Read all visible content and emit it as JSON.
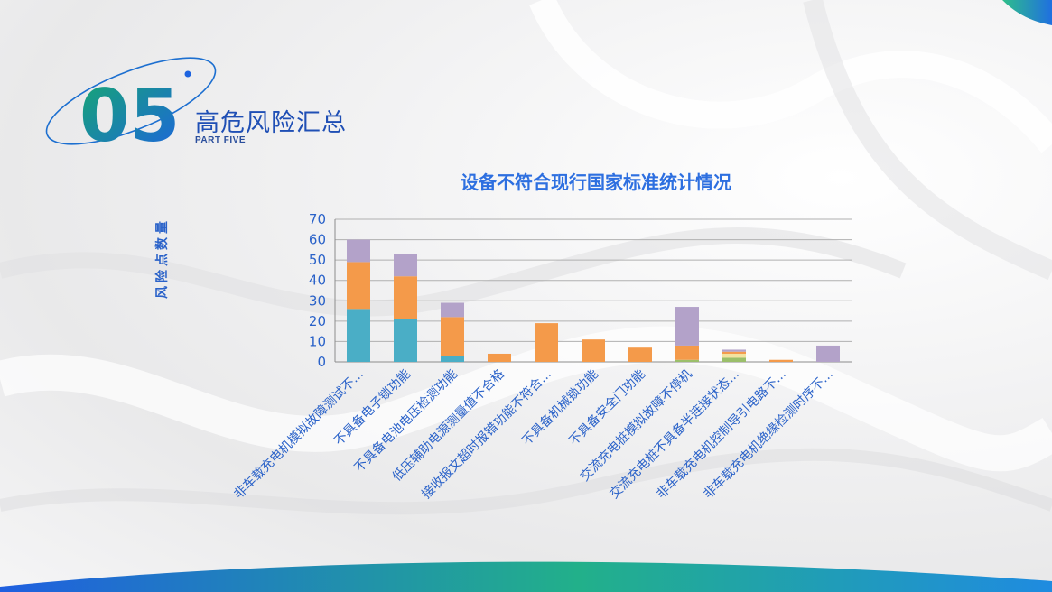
{
  "section": {
    "number": "05",
    "title": "高危风险汇总",
    "subtitle": "PART FIVE"
  },
  "colors": {
    "teal": "#4aaec6",
    "orange": "#f49a4a",
    "purple": "#b3a2c9",
    "green": "#9bbf6a",
    "light_yellow": "#f2e2a0",
    "accent_blue": "#2d6fe0",
    "brand_green": "#18a37a"
  },
  "chart_data": {
    "type": "bar",
    "stacked": true,
    "title": "设备不符合现行国家标准统计情况",
    "ylabel": "风险点数量",
    "xlabel": "",
    "ylim": [
      0,
      70
    ],
    "yticks": [
      0,
      10,
      20,
      30,
      40,
      50,
      60,
      70
    ],
    "grid": true,
    "categories": [
      "非车载充电机模拟故障测试不...",
      "不具备电子锁功能",
      "不具备电池电压检测功能",
      "低压辅助电源测量值不合格",
      "接收报文超时报错功能不符合...",
      "不具备机械锁功能",
      "不具备安全门功能",
      "交流充电桩模拟故障不停机",
      "交流充电桩不具备半连接状态...",
      "非车载充电机控制导引电路不...",
      "非车载充电机绝缘检测时序不..."
    ],
    "series": [
      {
        "color": "#4aaec6",
        "values": [
          26,
          21,
          3,
          0,
          0,
          0,
          0,
          0,
          0,
          0,
          0
        ]
      },
      {
        "color": "#9bbf6a",
        "values": [
          0,
          0,
          0,
          0,
          0,
          0,
          0,
          1,
          2,
          0,
          0
        ]
      },
      {
        "color": "#f2e2a0",
        "values": [
          0,
          0,
          0,
          0,
          0,
          0,
          0,
          0,
          2,
          0,
          0
        ]
      },
      {
        "color": "#f49a4a",
        "values": [
          23,
          21,
          19,
          4,
          19,
          11,
          7,
          7,
          1,
          1,
          0
        ]
      },
      {
        "color": "#b3a2c9",
        "values": [
          11,
          11,
          7,
          0,
          0,
          0,
          0,
          19,
          1,
          0,
          8
        ]
      }
    ]
  }
}
